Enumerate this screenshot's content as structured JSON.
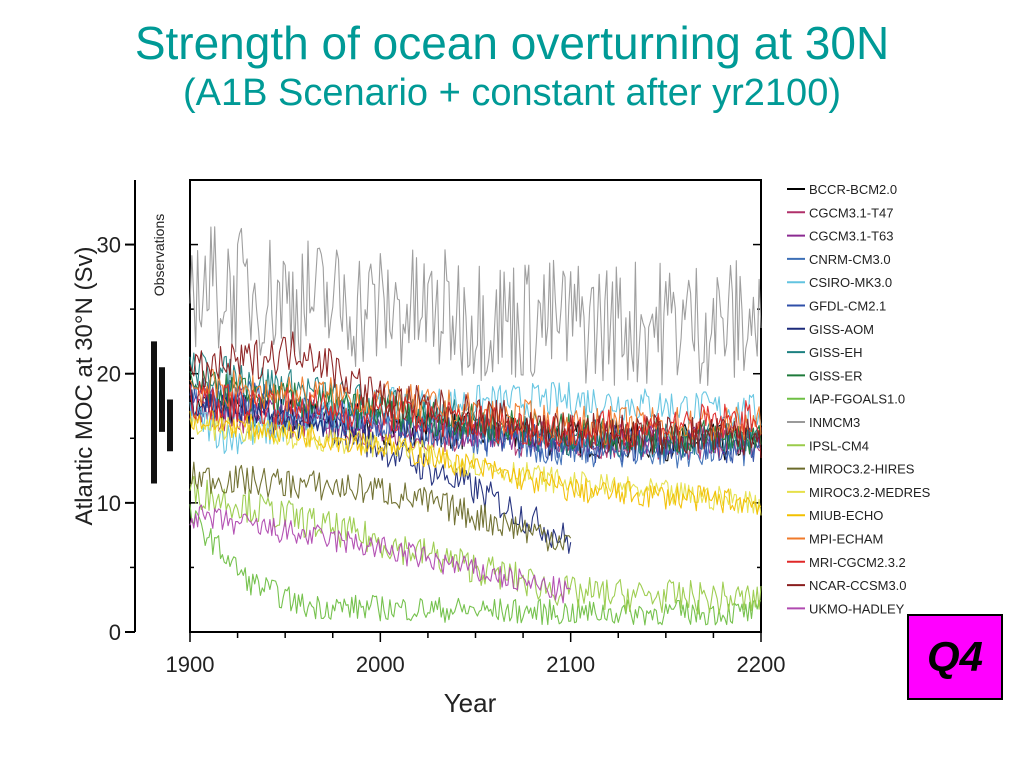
{
  "slide": {
    "title_line1": "Strength of ocean overturning at 30N",
    "title_line2": "(A1B Scenario + constant after yr2100)",
    "badge": "Q4",
    "title_color": "#009a96",
    "badge_color": "#ff00ff"
  },
  "chart_data": {
    "type": "line",
    "xlabel": "Year",
    "ylabel": "Atlantic MOC at  30°N (Sv)",
    "xlim": [
      1880,
      2200
    ],
    "ylim": [
      0,
      35
    ],
    "xticks": [
      1900,
      2000,
      2100,
      2200
    ],
    "yticks": [
      0,
      10,
      20,
      30
    ],
    "grid": false,
    "legend": "right",
    "observations": {
      "label": "Observations",
      "ranges": [
        [
          11.5,
          22.5
        ],
        [
          15.5,
          20.5
        ],
        [
          14,
          18
        ]
      ]
    },
    "series": [
      {
        "name": "BCCR-BCM2.0",
        "color": "#000000",
        "end": 2200,
        "keys": [
          [
            1900,
            17.5
          ],
          [
            2000,
            16
          ],
          [
            2100,
            15
          ],
          [
            2200,
            14.5
          ]
        ],
        "noise": 1.5
      },
      {
        "name": "CGCM3.1-T47",
        "color": "#b0306a",
        "end": 2200,
        "keys": [
          [
            1900,
            17
          ],
          [
            2000,
            15.5
          ],
          [
            2100,
            14.5
          ],
          [
            2200,
            14.5
          ]
        ],
        "noise": 1.2
      },
      {
        "name": "CGCM3.1-T63",
        "color": "#8b2a91",
        "end": 2200,
        "keys": [
          [
            1900,
            18
          ],
          [
            2000,
            16
          ],
          [
            2100,
            15
          ],
          [
            2200,
            15
          ]
        ],
        "noise": 1.2
      },
      {
        "name": "CNRM-CM3.0",
        "color": "#3d6fb6",
        "end": 2200,
        "keys": [
          [
            1900,
            18
          ],
          [
            2000,
            16
          ],
          [
            2100,
            14
          ],
          [
            2200,
            14
          ]
        ],
        "noise": 1.3
      },
      {
        "name": "CSIRO-MK3.0",
        "color": "#62c4e0",
        "end": 2200,
        "keys": [
          [
            1900,
            17
          ],
          [
            1920,
            15
          ],
          [
            2000,
            17.5
          ],
          [
            2100,
            18
          ],
          [
            2200,
            17
          ]
        ],
        "noise": 1.4
      },
      {
        "name": "GFDL-CM2.1",
        "color": "#2f4fa8",
        "end": 2200,
        "keys": [
          [
            1900,
            19
          ],
          [
            2000,
            16
          ],
          [
            2100,
            14.5
          ],
          [
            2200,
            14.5
          ]
        ],
        "noise": 1.4
      },
      {
        "name": "GISS-AOM",
        "color": "#1c2a7a",
        "end": 2100,
        "keys": [
          [
            1900,
            18
          ],
          [
            1990,
            15
          ],
          [
            2050,
            11
          ],
          [
            2100,
            7
          ]
        ],
        "noise": 1.3
      },
      {
        "name": "GISS-EH",
        "color": "#1c8080",
        "end": 2200,
        "keys": [
          [
            1900,
            20.5
          ],
          [
            2000,
            17.5
          ],
          [
            2100,
            15
          ],
          [
            2200,
            15
          ]
        ],
        "noise": 1.5
      },
      {
        "name": "GISS-ER",
        "color": "#1e7a3a",
        "end": 2200,
        "keys": [
          [
            1900,
            19
          ],
          [
            2000,
            17
          ],
          [
            2100,
            15.5
          ],
          [
            2200,
            15
          ]
        ],
        "noise": 1.4
      },
      {
        "name": "IAP-FGOALS1.0",
        "color": "#6fbf44",
        "end": 2200,
        "keys": [
          [
            1900,
            9
          ],
          [
            1930,
            4
          ],
          [
            1960,
            2
          ],
          [
            2100,
            1.5
          ],
          [
            2200,
            1.5
          ]
        ],
        "noise": 1.0
      },
      {
        "name": "INMCM3",
        "color": "#9a9a9a",
        "end": 2200,
        "keys": [
          [
            1900,
            27
          ],
          [
            2000,
            25
          ],
          [
            2100,
            24
          ],
          [
            2200,
            24
          ]
        ],
        "noise": 5.0
      },
      {
        "name": "IPSL-CM4",
        "color": "#9acb4a",
        "end": 2200,
        "keys": [
          [
            1900,
            11
          ],
          [
            2000,
            7
          ],
          [
            2100,
            3
          ],
          [
            2200,
            2.5
          ]
        ],
        "noise": 1.3
      },
      {
        "name": "MIROC3.2-HIRES",
        "color": "#6b6b2a",
        "end": 2100,
        "keys": [
          [
            1900,
            12
          ],
          [
            2000,
            11
          ],
          [
            2050,
            9
          ],
          [
            2100,
            7
          ]
        ],
        "noise": 1.2
      },
      {
        "name": "MIROC3.2-MEDRES",
        "color": "#e6e04a",
        "end": 2200,
        "keys": [
          [
            1900,
            16
          ],
          [
            2000,
            14.5
          ],
          [
            2100,
            11.5
          ],
          [
            2200,
            10
          ]
        ],
        "noise": 1.0
      },
      {
        "name": "MIUB-ECHO",
        "color": "#f2c000",
        "end": 2200,
        "keys": [
          [
            1900,
            16.5
          ],
          [
            2000,
            14.5
          ],
          [
            2100,
            11
          ],
          [
            2200,
            10
          ]
        ],
        "noise": 1.0
      },
      {
        "name": "MPI-ECHAM",
        "color": "#f07a2a",
        "end": 2200,
        "keys": [
          [
            1900,
            19
          ],
          [
            2000,
            18
          ],
          [
            2100,
            16
          ],
          [
            2200,
            16
          ]
        ],
        "noise": 1.5
      },
      {
        "name": "MRI-CGCM2.3.2",
        "color": "#e02828",
        "end": 2200,
        "keys": [
          [
            1900,
            18
          ],
          [
            2000,
            17
          ],
          [
            2100,
            15.5
          ],
          [
            2200,
            16.5
          ]
        ],
        "noise": 1.5
      },
      {
        "name": "NCAR-CCSM3.0",
        "color": "#8a1e1e",
        "end": 2200,
        "keys": [
          [
            1900,
            20
          ],
          [
            1960,
            22
          ],
          [
            2000,
            18
          ],
          [
            2100,
            15.5
          ],
          [
            2200,
            15
          ]
        ],
        "noise": 1.6
      },
      {
        "name": "UKMO-HADLEY",
        "color": "#b04ab0",
        "end": 2100,
        "keys": [
          [
            1900,
            9
          ],
          [
            2000,
            6.5
          ],
          [
            2100,
            3
          ]
        ],
        "noise": 1.0
      }
    ]
  }
}
